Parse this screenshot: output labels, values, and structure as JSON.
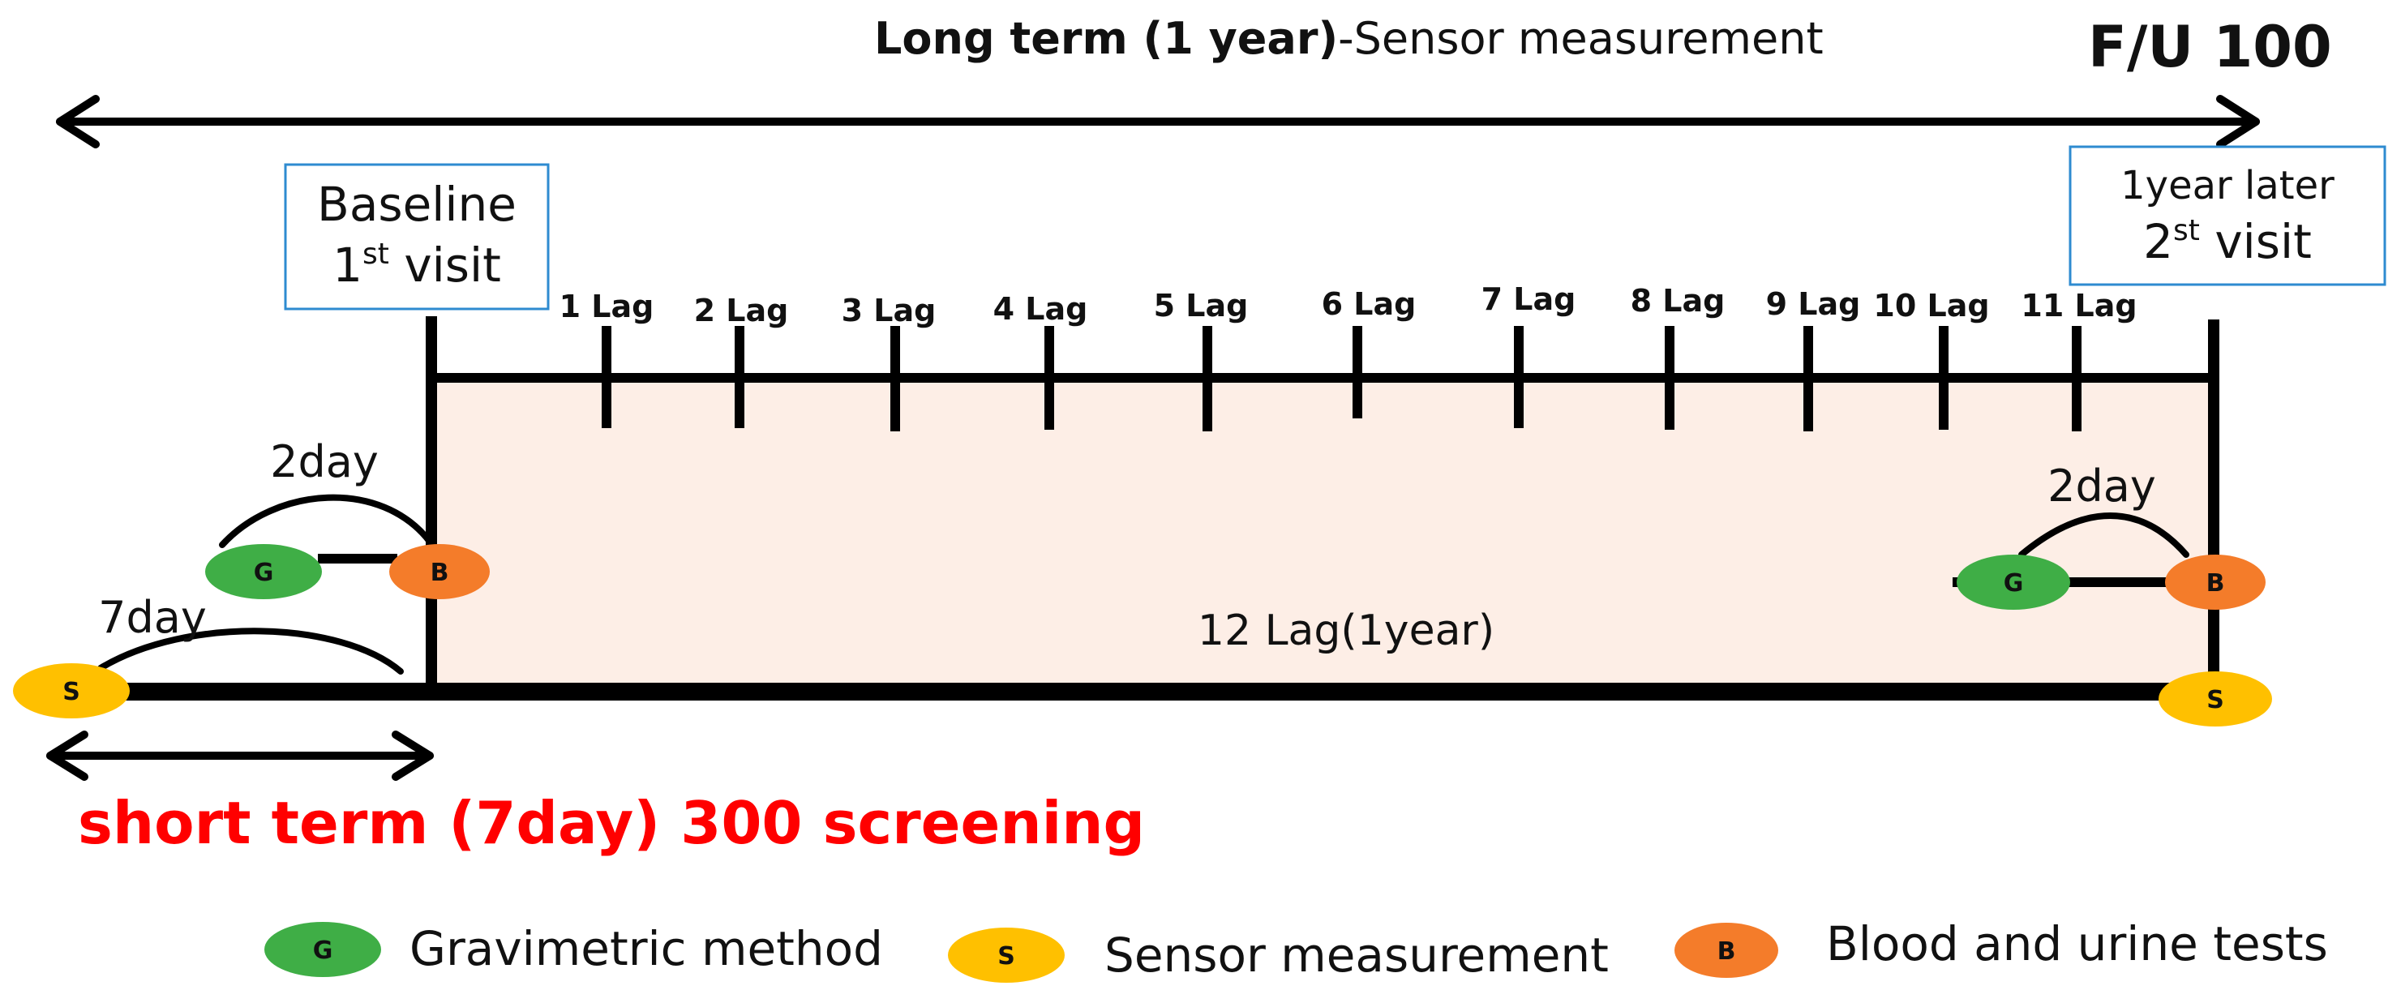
{
  "title": {
    "bold_part": "Long term (1 year)",
    "normal_part": "-Sensor measurement",
    "follow_up": "F/U 100"
  },
  "baseline_box": {
    "line1": "Baseline",
    "line2_pre": "1",
    "line2_sup": "st",
    "line2_post": " visit"
  },
  "later_box": {
    "line1": "1year later",
    "line2_pre": "2",
    "line2_sup": "st",
    "line2_post": " visit"
  },
  "lags": [
    "1 Lag",
    "2 Lag",
    "3 Lag",
    "4 Lag",
    "5 Lag",
    "6 Lag",
    "7 Lag",
    "8 Lag",
    "9 Lag",
    "10 Lag",
    "11 Lag"
  ],
  "center_label": "12 Lag(1year)",
  "left_two_day": "2day",
  "right_two_day": "2day",
  "seven_day": "7day",
  "short_term": {
    "normal_part": "short term (7day) 300 ",
    "bold_part": "screening"
  },
  "nodes": {
    "G": {
      "letter": "G",
      "color": "#3fae46"
    },
    "S": {
      "letter": "S",
      "color": "#ffc000"
    },
    "B": {
      "letter": "B",
      "color": "#f47c2a"
    }
  },
  "legend": [
    {
      "letter": "G",
      "label": "Gravimetric method"
    },
    {
      "letter": "S",
      "label": "Sensor measurement"
    },
    {
      "letter": "B",
      "label": "Blood and urine tests"
    }
  ],
  "colors": {
    "box_border": "#2e8bd0",
    "fill_region": "#fdeee6",
    "line": "#000000",
    "short_term_text": "#ff0000"
  }
}
